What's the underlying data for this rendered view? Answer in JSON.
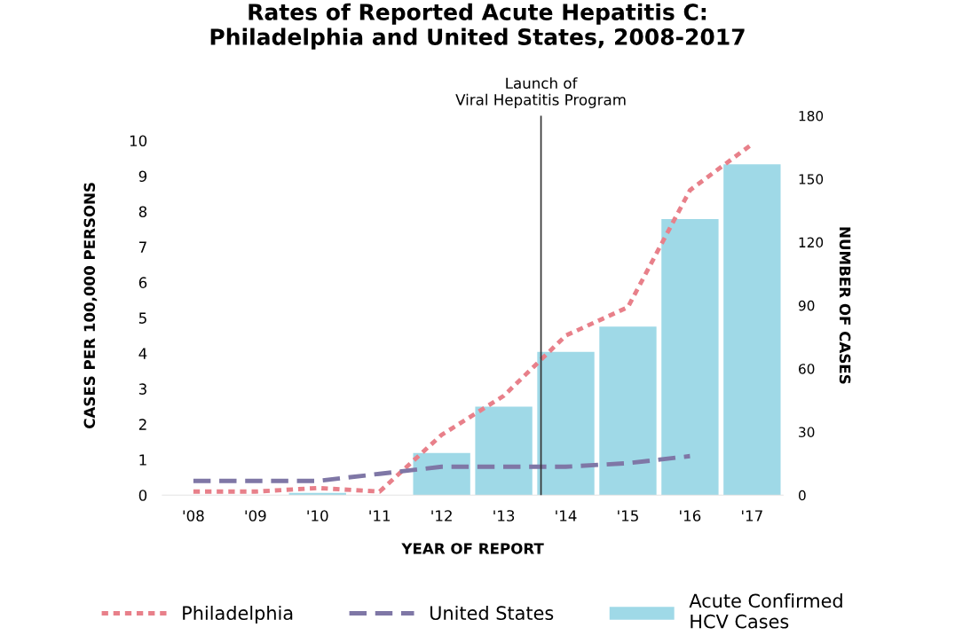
{
  "chart_data": {
    "type": "bar",
    "title": "Rates of Reported Acute Hepatitis C:\nPhiladelphia and United States, 2008-2017",
    "xlabel": "YEAR OF REPORT",
    "ylabel": "CASES PER 100,000 PERSONS",
    "y2label": "NUMBER OF CASES",
    "x": [
      2008,
      2009,
      2010,
      2011,
      2012,
      2013,
      2014,
      2015,
      2016,
      2017
    ],
    "xlim": [
      2007.5,
      2017.5
    ],
    "xticks": [
      {
        "value": 2008,
        "label": "'08"
      },
      {
        "value": 2009,
        "label": "'09"
      },
      {
        "value": 2010,
        "label": "'10"
      },
      {
        "value": 2011,
        "label": "'11"
      },
      {
        "value": 2012,
        "label": "'12"
      },
      {
        "value": 2013,
        "label": "'13"
      },
      {
        "value": 2014,
        "label": "'14"
      },
      {
        "value": 2015,
        "label": "'15"
      },
      {
        "value": 2016,
        "label": "'16"
      },
      {
        "value": 2017,
        "label": "'17"
      }
    ],
    "ylim": [
      0,
      10.7
    ],
    "yticks": [
      0,
      1,
      2,
      3,
      4,
      5,
      6,
      7,
      8,
      9,
      10
    ],
    "y2lim": [
      0,
      180
    ],
    "y2ticks": [
      0,
      30,
      60,
      90,
      120,
      150,
      180
    ],
    "series": [
      {
        "name": "Philadelphia",
        "type": "line",
        "axis": "y",
        "color": "#e8808a",
        "line_style": "dotted",
        "values": [
          0.1,
          0.1,
          0.2,
          0.1,
          1.7,
          2.8,
          4.5,
          5.3,
          8.6,
          9.9
        ]
      },
      {
        "name": "United States",
        "type": "line",
        "axis": "y",
        "color": "#7f77a6",
        "line_style": "dashed",
        "values": [
          0.4,
          0.4,
          0.4,
          0.6,
          0.8,
          0.8,
          0.8,
          0.9,
          1.1,
          null
        ]
      },
      {
        "name": "Acute Confirmed\nHCV Cases",
        "axis": "y2",
        "color": "#9fd9e7",
        "values": [
          0,
          0,
          1,
          0,
          20,
          42,
          68,
          80,
          131,
          157
        ]
      }
    ],
    "ref_lines": [
      {
        "axis": "x",
        "value": 2013.6,
        "label": "Launch of\nViral Hepatitis Program",
        "color": "#333333",
        "line_style": "solid"
      }
    ],
    "legend": "bottom",
    "grid": false
  }
}
